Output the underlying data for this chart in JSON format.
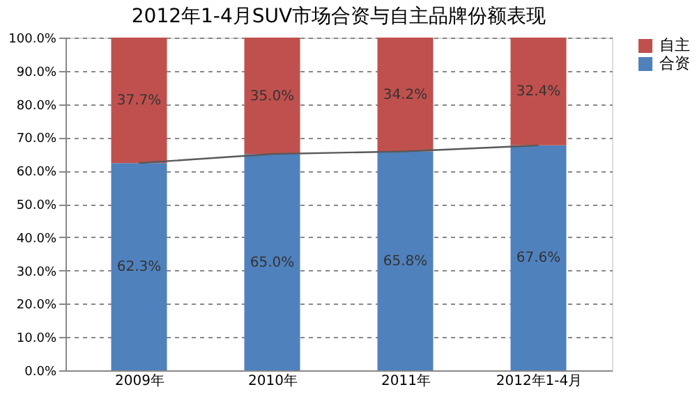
{
  "chart_data": {
    "type": "bar",
    "stacked": true,
    "title": "2012年1-4月SUV市场合资与自主品牌份额表现",
    "categories": [
      "2009年",
      "2010年",
      "2011年",
      "2012年1-4月"
    ],
    "series": [
      {
        "name": "合资",
        "color": "#4f81bd",
        "values": [
          62.3,
          65.0,
          65.8,
          67.6
        ],
        "value_labels": [
          "62.3%",
          "65.0%",
          "65.8%",
          "67.6%"
        ]
      },
      {
        "name": "自主",
        "color": "#c0504d",
        "values": [
          37.7,
          35.0,
          34.2,
          32.4
        ],
        "value_labels": [
          "37.7%",
          "35.0%",
          "34.2%",
          "32.4%"
        ]
      },
      {
        "type": "line",
        "color": "#595959",
        "values": [
          62.3,
          65.0,
          65.8,
          67.6
        ]
      }
    ],
    "ylim": [
      0,
      100
    ],
    "yticks": [
      {
        "value": 0,
        "label": "0.0%"
      },
      {
        "value": 10,
        "label": "10.0%"
      },
      {
        "value": 20,
        "label": "20.0%"
      },
      {
        "value": 30,
        "label": "30.0%"
      },
      {
        "value": 40,
        "label": "40.0%"
      },
      {
        "value": 50,
        "label": "50.0%"
      },
      {
        "value": 60,
        "label": "60.0%"
      },
      {
        "value": 70,
        "label": "70.0%"
      },
      {
        "value": 80,
        "label": "80.0%"
      },
      {
        "value": 90,
        "label": "90.0%"
      },
      {
        "value": 100,
        "label": "100.0%"
      }
    ],
    "grid": "y",
    "legend": "right"
  }
}
